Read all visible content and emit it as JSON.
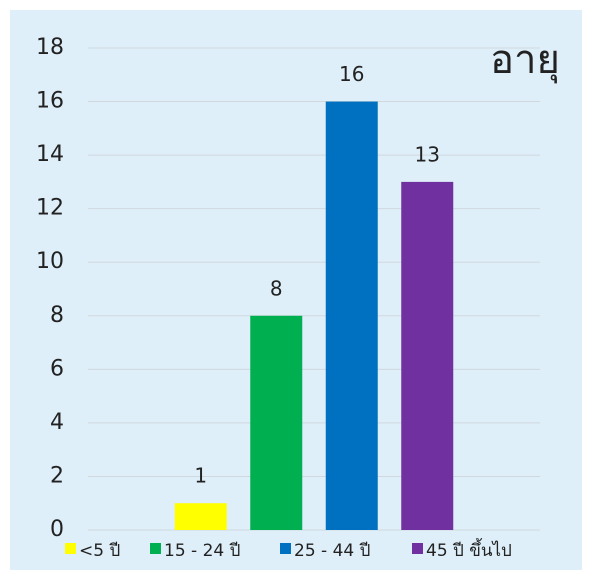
{
  "chart_data": {
    "type": "bar",
    "title": "อายุ",
    "categories": [
      null
    ],
    "series": [
      {
        "name": "<5 ปี",
        "color": "#ffff00",
        "values": [
          1
        ]
      },
      {
        "name": "15 - 24 ปี",
        "color": "#00b050",
        "values": [
          8
        ]
      },
      {
        "name": "25 - 44 ปี",
        "color": "#0070c0",
        "values": [
          16
        ]
      },
      {
        "name": "45 ปี ขึ้นไป",
        "color": "#7030a0",
        "values": [
          13
        ]
      }
    ],
    "ylim": [
      0,
      18
    ],
    "yticks": [
      0,
      2,
      4,
      6,
      8,
      10,
      12,
      14,
      16,
      18
    ],
    "grid": true,
    "legend": "bottom"
  }
}
